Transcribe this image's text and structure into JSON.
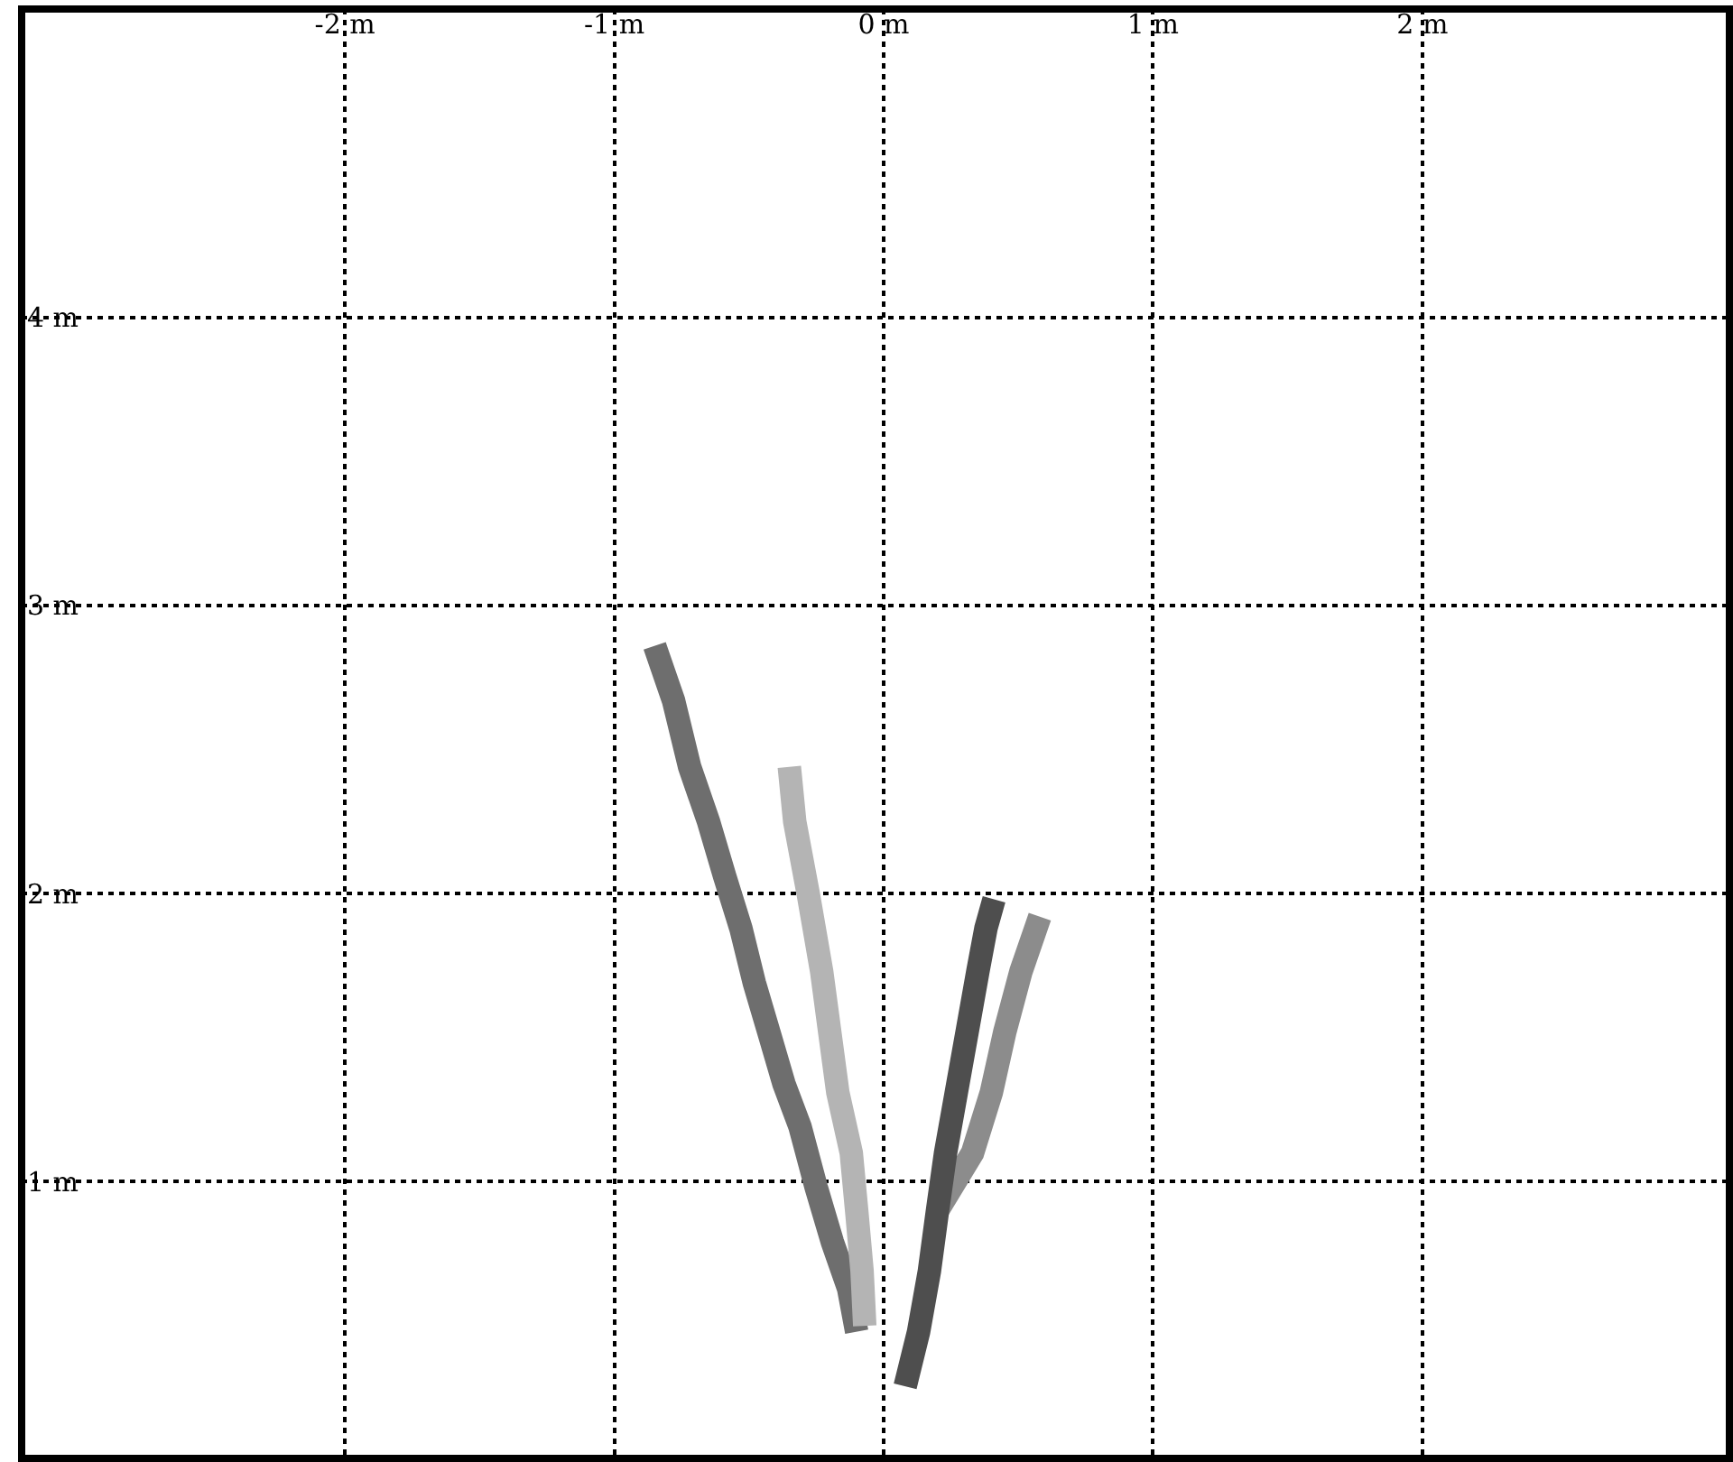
{
  "chart_data": {
    "type": "line",
    "xlim": [
      -3.2,
      3.14
    ],
    "ylim": [
      0.04,
      5.07
    ],
    "xticks": [
      {
        "value": -2,
        "label": "-2 m"
      },
      {
        "value": -1,
        "label": "-1 m"
      },
      {
        "value": 0,
        "label": "0 m"
      },
      {
        "value": 1,
        "label": "1 m"
      },
      {
        "value": 2,
        "label": "2 m"
      }
    ],
    "yticks": [
      {
        "value": 1,
        "label": "1 m"
      },
      {
        "value": 2,
        "label": "2 m"
      },
      {
        "value": 3,
        "label": "3 m"
      },
      {
        "value": 4,
        "label": "4 m"
      }
    ],
    "grid": true,
    "marker": "none",
    "line_style": "solid",
    "series": [
      {
        "color": "#6e6e6e",
        "x": [
          -0.85,
          -0.78,
          -0.72,
          -0.65,
          -0.59,
          -0.53,
          -0.48,
          -0.42,
          -0.37,
          -0.31,
          -0.25,
          -0.19,
          -0.13,
          -0.1
        ],
        "values": [
          2.86,
          2.67,
          2.44,
          2.25,
          2.06,
          1.88,
          1.69,
          1.5,
          1.34,
          1.19,
          0.98,
          0.79,
          0.63,
          0.48
        ]
      },
      {
        "color": "#b4b4b4",
        "x": [
          -0.35,
          -0.33,
          -0.28,
          -0.23,
          -0.2,
          -0.17,
          -0.12,
          -0.1,
          -0.08,
          -0.07
        ],
        "values": [
          2.44,
          2.25,
          2.0,
          1.73,
          1.52,
          1.31,
          1.1,
          0.9,
          0.69,
          0.5
        ]
      },
      {
        "color": "#8c8c8c",
        "x": [
          0.2,
          0.33,
          0.4,
          0.45,
          0.51,
          0.58
        ],
        "values": [
          0.9,
          1.1,
          1.31,
          1.52,
          1.73,
          1.92
        ]
      },
      {
        "color": "#4e4e4e",
        "x": [
          0.08,
          0.13,
          0.17,
          0.2,
          0.23,
          0.27,
          0.31,
          0.35,
          0.38,
          0.41
        ],
        "values": [
          0.29,
          0.48,
          0.69,
          0.9,
          1.1,
          1.31,
          1.52,
          1.73,
          1.88,
          1.98
        ]
      }
    ]
  }
}
